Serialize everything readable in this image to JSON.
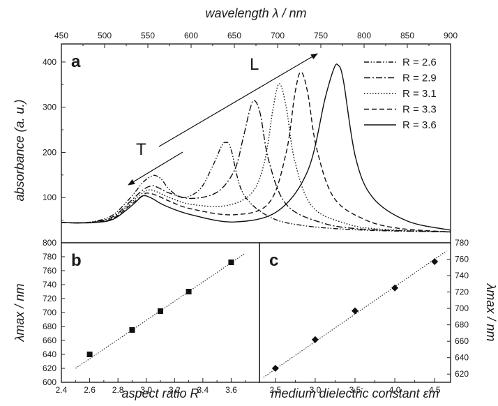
{
  "chart_data": [
    {
      "id": "a",
      "type": "line",
      "panel_label": "a",
      "xlabel": "wavelength λ / nm",
      "x_axis_position": "top",
      "ylabel": "absorbance (a. u.)",
      "xlim": [
        450,
        900
      ],
      "ylim": [
        0,
        440
      ],
      "x_ticks": [
        "450",
        "500",
        "550",
        "600",
        "650",
        "700",
        "750",
        "800",
        "850",
        "900"
      ],
      "y_ticks": [
        "100",
        "200",
        "300",
        "400"
      ],
      "legend_position": "top-right",
      "annotations": [
        {
          "id": "L",
          "text": "L",
          "note": "arrow toward longer wavelength (longitudinal band)"
        },
        {
          "id": "T",
          "text": "T",
          "note": "arrow toward transverse band"
        }
      ],
      "series": [
        {
          "name": "R = 2.6",
          "style": "dash-dot-dot",
          "x": [
            450,
            470,
            490,
            510,
            530,
            545,
            555,
            560,
            566,
            575,
            590,
            610,
            625,
            635,
            640,
            646,
            660,
            690,
            730,
            800,
            900
          ],
          "y": [
            45,
            44,
            48,
            62,
            100,
            135,
            148,
            148,
            140,
            118,
            100,
            118,
            170,
            213,
            222,
            208,
            110,
            58,
            38,
            28,
            24
          ]
        },
        {
          "name": "R = 2.9",
          "style": "dash-dot",
          "x": [
            450,
            470,
            490,
            510,
            530,
            545,
            555,
            562,
            575,
            600,
            630,
            650,
            660,
            668,
            673,
            680,
            690,
            710,
            750,
            800,
            900
          ],
          "y": [
            45,
            44,
            47,
            58,
            92,
            118,
            126,
            122,
            110,
            98,
            112,
            160,
            230,
            295,
            315,
            285,
            180,
            85,
            45,
            30,
            24
          ]
        },
        {
          "name": "R = 3.1",
          "style": "dotted",
          "x": [
            450,
            470,
            490,
            510,
            530,
            545,
            552,
            560,
            575,
            600,
            640,
            670,
            685,
            695,
            702,
            710,
            720,
            740,
            780,
            820,
            900
          ],
          "y": [
            45,
            44,
            47,
            56,
            88,
            112,
            117,
            113,
            100,
            85,
            82,
            110,
            180,
            300,
            352,
            300,
            180,
            80,
            42,
            30,
            24
          ]
        },
        {
          "name": "R = 3.3",
          "style": "dashed",
          "x": [
            450,
            470,
            490,
            510,
            530,
            545,
            550,
            560,
            575,
            600,
            650,
            690,
            710,
            720,
            727,
            735,
            745,
            765,
            800,
            840,
            900
          ],
          "y": [
            45,
            44,
            46,
            54,
            84,
            106,
            110,
            105,
            92,
            75,
            62,
            88,
            200,
            330,
            378,
            330,
            210,
            100,
            52,
            32,
            24
          ]
        },
        {
          "name": "R = 3.6",
          "style": "solid",
          "x": [
            450,
            470,
            490,
            510,
            530,
            542,
            547,
            555,
            570,
            600,
            650,
            700,
            735,
            755,
            765,
            770,
            776,
            790,
            810,
            850,
            900
          ],
          "y": [
            45,
            44,
            45,
            52,
            80,
            101,
            104,
            98,
            82,
            62,
            46,
            70,
            160,
            320,
            385,
            393,
            360,
            190,
            100,
            48,
            28
          ]
        }
      ]
    },
    {
      "id": "b",
      "type": "scatter",
      "panel_label": "b",
      "xlabel": "aspect ratio R",
      "ylabel": "λmax / nm",
      "xlim": [
        2.4,
        3.8
      ],
      "ylim": [
        600,
        800
      ],
      "x_ticks": [
        "2.4",
        "2.6",
        "2.8",
        "3.0",
        "3.2",
        "3.4",
        "3.6"
      ],
      "y_ticks": [
        "600",
        "620",
        "640",
        "660",
        "680",
        "700",
        "720",
        "740",
        "760",
        "780",
        "800"
      ],
      "marker": "square",
      "fit_line": {
        "x": [
          2.5,
          3.7
        ],
        "y": [
          620,
          785
        ]
      },
      "x": [
        2.6,
        2.9,
        3.1,
        3.3,
        3.6
      ],
      "y": [
        640,
        675,
        702,
        730,
        772
      ]
    },
    {
      "id": "c",
      "type": "scatter",
      "panel_label": "c",
      "xlabel": "medium dielectric constant εm",
      "ylabel": "λmax / nm",
      "y_axis_position": "right",
      "xlim": [
        2.3,
        4.7
      ],
      "ylim": [
        610,
        780
      ],
      "x_ticks": [
        "2.5",
        "3.0",
        "3.5",
        "4.0",
        "4.5"
      ],
      "y_ticks": [
        "620",
        "640",
        "660",
        "680",
        "700",
        "720",
        "740",
        "760",
        "780"
      ],
      "marker": "diamond",
      "fit_line": {
        "x": [
          2.35,
          4.65
        ],
        "y": [
          616,
          770
        ]
      },
      "x": [
        2.5,
        3.0,
        3.5,
        4.0,
        4.5
      ],
      "y": [
        627,
        662,
        697,
        725,
        757
      ]
    }
  ]
}
